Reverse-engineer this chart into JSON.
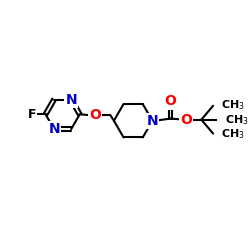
{
  "bg_color": "#ffffff",
  "atom_colors": {
    "N": "#0000cc",
    "O": "#ff0000",
    "F": "#000000"
  },
  "bond_color": "#000000",
  "bond_width": 1.5,
  "figsize": [
    2.5,
    2.5
  ],
  "dpi": 100
}
